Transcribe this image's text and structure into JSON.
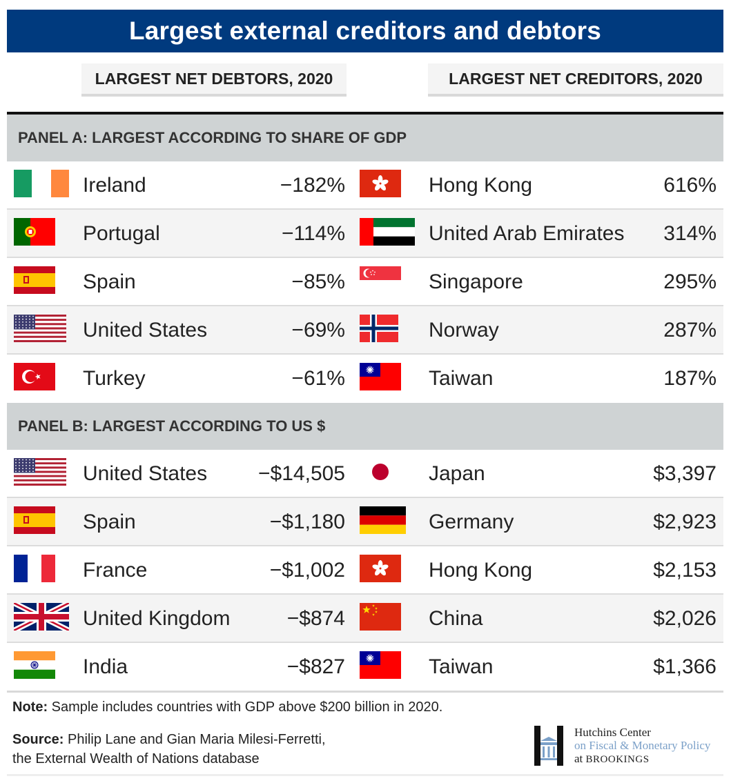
{
  "title": "Largest external creditors and debtors",
  "column_headers": {
    "debtors": "LARGEST NET DEBTORS, 2020",
    "creditors": "LARGEST NET CREDITORS, 2020"
  },
  "colors": {
    "title_bg": "#003a7e",
    "panel_bg": "#cfd3d4",
    "row_alt": "#f4f4f4"
  },
  "chart_data": {
    "type": "table",
    "title": "Largest external creditors and debtors",
    "columns": [
      "LARGEST NET DEBTORS, 2020",
      "LARGEST NET CREDITORS, 2020"
    ],
    "panels": [
      {
        "label": "PANEL A: LARGEST ACCORDING TO SHARE OF GDP",
        "rows": [
          {
            "debtor": {
              "country": "Ireland",
              "value": "−182%",
              "flag": "ireland-flag-icon"
            },
            "creditor": {
              "country": "Hong Kong",
              "value": "616%",
              "flag": "hong-kong-flag-icon"
            }
          },
          {
            "debtor": {
              "country": "Portugal",
              "value": "−114%",
              "flag": "portugal-flag-icon"
            },
            "creditor": {
              "country": "United Arab Emirates",
              "value": "314%",
              "flag": "uae-flag-icon"
            }
          },
          {
            "debtor": {
              "country": "Spain",
              "value": "−85%",
              "flag": "spain-flag-icon"
            },
            "creditor": {
              "country": "Singapore",
              "value": "295%",
              "flag": "singapore-flag-icon"
            }
          },
          {
            "debtor": {
              "country": "United States",
              "value": "−69%",
              "flag": "us-flag-icon"
            },
            "creditor": {
              "country": "Norway",
              "value": "287%",
              "flag": "norway-flag-icon"
            }
          },
          {
            "debtor": {
              "country": "Turkey",
              "value": "−61%",
              "flag": "turkey-flag-icon"
            },
            "creditor": {
              "country": "Taiwan",
              "value": "187%",
              "flag": "taiwan-flag-icon"
            }
          }
        ]
      },
      {
        "label": "PANEL B: LARGEST ACCORDING TO US $",
        "rows": [
          {
            "debtor": {
              "country": "United States",
              "value": "−$14,505",
              "flag": "us-flag-icon"
            },
            "creditor": {
              "country": "Japan",
              "value": "$3,397",
              "flag": "japan-flag-icon"
            }
          },
          {
            "debtor": {
              "country": "Spain",
              "value": "−$1,180",
              "flag": "spain-flag-icon"
            },
            "creditor": {
              "country": "Germany",
              "value": "$2,923",
              "flag": "germany-flag-icon"
            }
          },
          {
            "debtor": {
              "country": "France",
              "value": "−$1,002",
              "flag": "france-flag-icon"
            },
            "creditor": {
              "country": "Hong Kong",
              "value": "$2,153",
              "flag": "hong-kong-flag-icon"
            }
          },
          {
            "debtor": {
              "country": "United Kingdom",
              "value": "−$874",
              "flag": "uk-flag-icon"
            },
            "creditor": {
              "country": "China",
              "value": "$2,026",
              "flag": "china-flag-icon"
            }
          },
          {
            "debtor": {
              "country": "India",
              "value": "−$827",
              "flag": "india-flag-icon"
            },
            "creditor": {
              "country": "Taiwan",
              "value": "$1,366",
              "flag": "taiwan-flag-icon"
            }
          }
        ]
      }
    ]
  },
  "note": {
    "label": "Note:",
    "text": " Sample includes countries with GDP above $200 billion in 2020."
  },
  "source": {
    "label": "Source:",
    "line1": " Philip Lane and Gian Maria Milesi-Ferretti,",
    "line2": "the External Wealth of Nations database"
  },
  "logo": {
    "line1": "Hutchins Center",
    "line2": "on Fiscal & Monetary Policy",
    "line3_prefix": "at ",
    "line3_name": "BROOKINGS"
  }
}
